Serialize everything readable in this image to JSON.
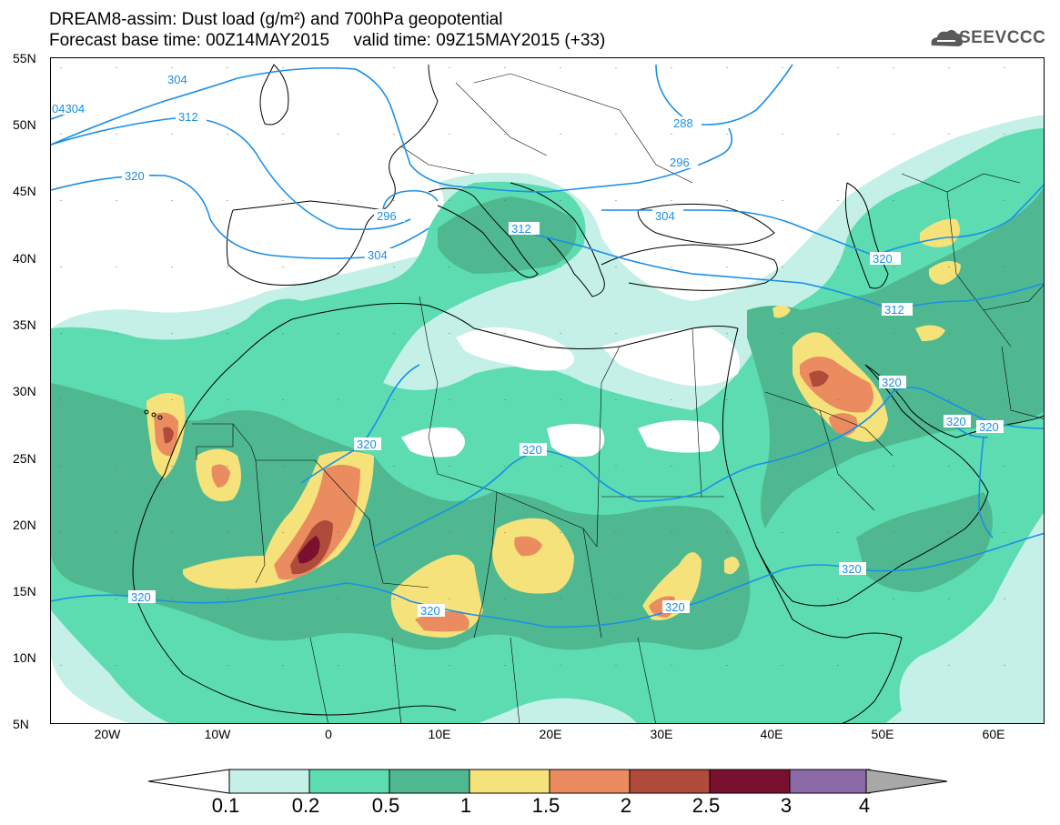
{
  "header": {
    "title_line1": "DREAM8-assim: Dust load (g/m²) and 700hPa geopotential",
    "title_line2": "Forecast base time: 00Z14MAY2015     valid time: 09Z15MAY2015 (+33)"
  },
  "logo": {
    "text": "SEEVCCC",
    "icon": "cloud-icon"
  },
  "map": {
    "lat_labels": [
      "55N",
      "50N",
      "45N",
      "40N",
      "35N",
      "30N",
      "25N",
      "20N",
      "15N",
      "10N",
      "5N"
    ],
    "lon_labels": [
      "20W",
      "10W",
      "0",
      "10E",
      "20E",
      "30E",
      "40E",
      "50E",
      "60E"
    ],
    "contour_labels": [
      "304",
      "04304",
      "312",
      "320",
      "320",
      "296",
      "304",
      "296",
      "288",
      "312",
      "304",
      "312",
      "320",
      "320",
      "320",
      "320",
      "320",
      "320",
      "320",
      "320",
      "320"
    ]
  },
  "colorbar": {
    "labels": [
      "0.1",
      "0.2",
      "0.5",
      "1",
      "1.5",
      "2",
      "2.5",
      "3",
      "4"
    ],
    "colors": [
      "#c4f0e8",
      "#5cdcb0",
      "#4fb890",
      "#f5e27a",
      "#ea8c60",
      "#b04a3a",
      "#7a1030",
      "#8c6aa8",
      "#a8a8a8"
    ]
  },
  "palette": {
    "contour": "#1a8fe8",
    "lvl1": "#c4f0e8",
    "lvl2": "#5cdcb0",
    "lvl3": "#4fb890",
    "lvl4": "#f5e27a",
    "lvl5": "#ea8c60",
    "lvl6": "#b04a3a",
    "lvl7": "#7a1030"
  }
}
